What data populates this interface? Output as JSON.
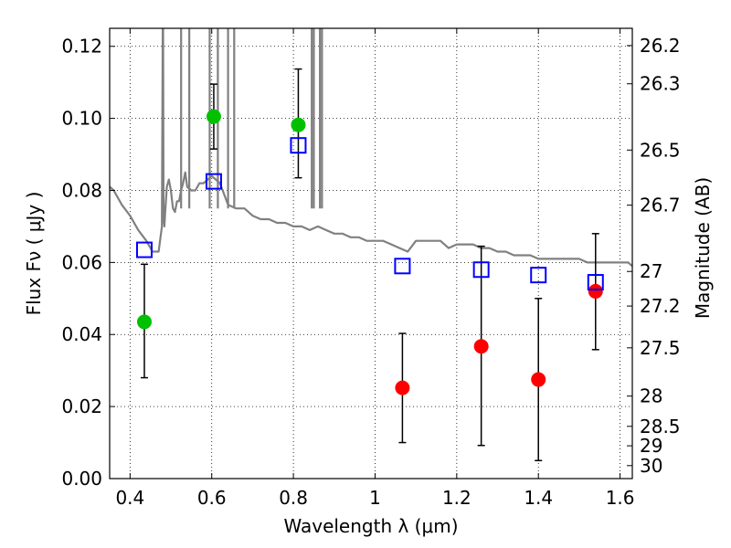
{
  "chart_data": {
    "type": "scatter",
    "xlabel": "Wavelength  λ (μm)",
    "ylabel": "Flux  Fν  ( μJy )",
    "ylabel_right": "Magnitude (AB)",
    "xlim": [
      0.35,
      1.63
    ],
    "ylim": [
      0.0,
      0.125
    ],
    "grid": true,
    "x_ticks": [
      {
        "value": 0.4,
        "label": "0.4"
      },
      {
        "value": 0.6,
        "label": "0.6"
      },
      {
        "value": 0.8,
        "label": "0.8"
      },
      {
        "value": 1.0,
        "label": "1"
      },
      {
        "value": 1.2,
        "label": "1.2"
      },
      {
        "value": 1.4,
        "label": "1.4"
      },
      {
        "value": 1.6,
        "label": "1.6"
      }
    ],
    "y_ticks": [
      {
        "value": 0.0,
        "label": "0.00"
      },
      {
        "value": 0.02,
        "label": "0.02"
      },
      {
        "value": 0.04,
        "label": "0.04"
      },
      {
        "value": 0.06,
        "label": "0.06"
      },
      {
        "value": 0.08,
        "label": "0.08"
      },
      {
        "value": 0.1,
        "label": "0.10"
      },
      {
        "value": 0.12,
        "label": "0.12"
      }
    ],
    "right_ticks": [
      {
        "flux": 0.1202,
        "label": "26.2"
      },
      {
        "flux": 0.1096,
        "label": "26.3"
      },
      {
        "flux": 0.0912,
        "label": "26.5"
      },
      {
        "flux": 0.0759,
        "label": "26.7"
      },
      {
        "flux": 0.0575,
        "label": "27"
      },
      {
        "flux": 0.0479,
        "label": "27.2"
      },
      {
        "flux": 0.0363,
        "label": "27.5"
      },
      {
        "flux": 0.0229,
        "label": "28"
      },
      {
        "flux": 0.0145,
        "label": "28.5"
      },
      {
        "flux": 0.0091,
        "label": "29"
      },
      {
        "flux": 0.0036,
        "label": "30"
      }
    ],
    "series": [
      {
        "marker": "line",
        "color": "#808080",
        "x": [
          0.35,
          0.36,
          0.37,
          0.38,
          0.4,
          0.42,
          0.44,
          0.455,
          0.47,
          0.478,
          0.48,
          0.481,
          0.482,
          0.484,
          0.486,
          0.49,
          0.495,
          0.5,
          0.505,
          0.51,
          0.515,
          0.52,
          0.525,
          0.53,
          0.535,
          0.54,
          0.55,
          0.56,
          0.57,
          0.58,
          0.59,
          0.6,
          0.62,
          0.64,
          0.66,
          0.68,
          0.7,
          0.72,
          0.74,
          0.76,
          0.78,
          0.8,
          0.82,
          0.84,
          0.86,
          0.88,
          0.9,
          0.92,
          0.94,
          0.96,
          0.98,
          1.0,
          1.02,
          1.04,
          1.06,
          1.08,
          1.1,
          1.12,
          1.14,
          1.16,
          1.18,
          1.2,
          1.22,
          1.24,
          1.26,
          1.28,
          1.3,
          1.32,
          1.34,
          1.36,
          1.38,
          1.4,
          1.42,
          1.44,
          1.46,
          1.48,
          1.5,
          1.52,
          1.54,
          1.56,
          1.58,
          1.6,
          1.62,
          1.63
        ],
        "y": [
          0.081,
          0.08,
          0.078,
          0.076,
          0.073,
          0.069,
          0.066,
          0.063,
          0.063,
          0.07,
          0.125,
          0.125,
          0.072,
          0.07,
          0.074,
          0.081,
          0.083,
          0.08,
          0.075,
          0.074,
          0.077,
          0.077,
          0.08,
          0.082,
          0.085,
          0.081,
          0.08,
          0.08,
          0.082,
          0.082,
          0.083,
          0.084,
          0.082,
          0.076,
          0.075,
          0.075,
          0.073,
          0.072,
          0.072,
          0.071,
          0.071,
          0.07,
          0.07,
          0.069,
          0.07,
          0.069,
          0.068,
          0.068,
          0.067,
          0.067,
          0.066,
          0.066,
          0.066,
          0.065,
          0.064,
          0.063,
          0.066,
          0.066,
          0.066,
          0.066,
          0.064,
          0.065,
          0.065,
          0.065,
          0.064,
          0.064,
          0.063,
          0.063,
          0.062,
          0.062,
          0.062,
          0.061,
          0.061,
          0.061,
          0.061,
          0.061,
          0.061,
          0.06,
          0.06,
          0.06,
          0.06,
          0.06,
          0.06,
          0.059
        ]
      },
      {
        "marker": "circle",
        "color": "#00c000",
        "points": [
          {
            "x": 0.435,
            "y": 0.0435,
            "err": [
              0.028,
              0.0595
            ]
          },
          {
            "x": 0.605,
            "y": 0.1005,
            "err": [
              0.0915,
              0.1095
            ]
          },
          {
            "x": 0.812,
            "y": 0.0982,
            "err": [
              0.0835,
              0.1137
            ]
          }
        ]
      },
      {
        "marker": "circle",
        "color": "#ff0000",
        "points": [
          {
            "x": 1.067,
            "y": 0.0252,
            "err": [
              0.01,
              0.0403
            ]
          },
          {
            "x": 1.26,
            "y": 0.0367,
            "err": [
              0.0092,
              0.0645
            ]
          },
          {
            "x": 1.4,
            "y": 0.0275,
            "err": [
              0.005,
              0.05
            ]
          },
          {
            "x": 1.54,
            "y": 0.052,
            "err": [
              0.0358,
              0.068
            ]
          }
        ]
      },
      {
        "marker": "open-square",
        "color": "#0000ff",
        "points": [
          {
            "x": 0.435,
            "y": 0.0635
          },
          {
            "x": 0.605,
            "y": 0.0825
          },
          {
            "x": 0.812,
            "y": 0.0925
          },
          {
            "x": 1.067,
            "y": 0.059
          },
          {
            "x": 1.26,
            "y": 0.058
          },
          {
            "x": 1.4,
            "y": 0.0565
          },
          {
            "x": 1.54,
            "y": 0.0545
          }
        ]
      }
    ]
  }
}
